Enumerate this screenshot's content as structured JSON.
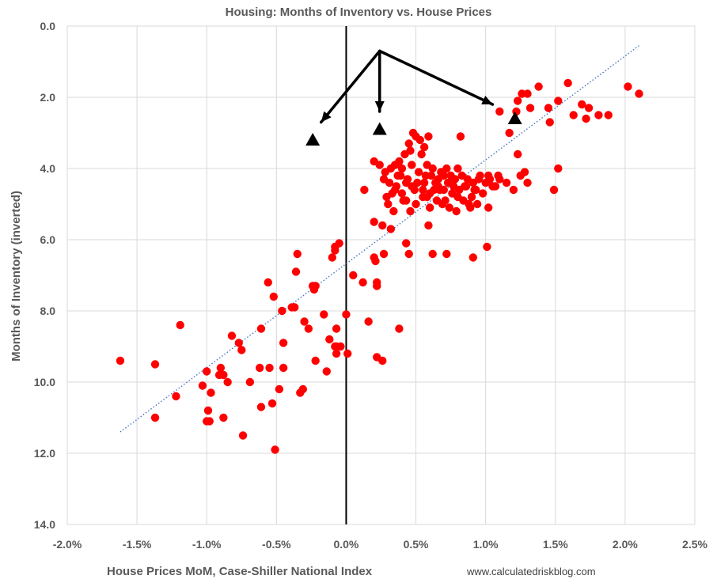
{
  "chart_data": {
    "type": "scatter",
    "title": "Housing: Months of Inventory vs. House Prices",
    "xlabel": "House Prices MoM, Case-Shiller National Index",
    "ylabel": "Months of Inventory (inverted)",
    "source_text": "www.calculatedriskblog.com",
    "xlim": [
      -2.0,
      2.5
    ],
    "ylim": [
      0.0,
      14.0
    ],
    "y_inverted": true,
    "x_tick_labels": [
      "-2.0%",
      "-1.5%",
      "-1.0%",
      "-0.5%",
      "0.0%",
      "0.5%",
      "1.0%",
      "1.5%",
      "2.0%",
      "2.5%"
    ],
    "x_tick_values": [
      -2.0,
      -1.5,
      -1.0,
      -0.5,
      0.0,
      0.5,
      1.0,
      1.5,
      2.0,
      2.5
    ],
    "y_tick_labels": [
      "0.0",
      "2.0",
      "4.0",
      "6.0",
      "8.0",
      "10.0",
      "12.0",
      "14.0"
    ],
    "y_tick_values": [
      0,
      2,
      4,
      6,
      8,
      10,
      12,
      14
    ],
    "grid": true,
    "zero_line": true,
    "point_color": "#ff0000",
    "trend_color": "#4472c4",
    "trendline": {
      "x": [
        -1.62,
        2.1
      ],
      "y": [
        11.4,
        0.55
      ],
      "style": "dotted"
    },
    "highlighted_points": [
      [
        -0.24,
        3.2
      ],
      [
        0.24,
        2.9
      ],
      [
        1.21,
        2.6
      ]
    ],
    "arrow_origin": [
      0.24,
      0.7
    ],
    "points": [
      [
        -1.62,
        9.4
      ],
      [
        -1.37,
        9.5
      ],
      [
        -1.37,
        11.0
      ],
      [
        -1.22,
        10.4
      ],
      [
        -1.19,
        8.4
      ],
      [
        -1.03,
        10.1
      ],
      [
        -1.0,
        11.1
      ],
      [
        -0.99,
        10.8
      ],
      [
        -0.98,
        11.1
      ],
      [
        -1.0,
        9.7
      ],
      [
        -0.97,
        10.3
      ],
      [
        -0.91,
        9.8
      ],
      [
        -0.9,
        9.6
      ],
      [
        -0.88,
        9.8
      ],
      [
        -0.88,
        11.0
      ],
      [
        -0.85,
        10.0
      ],
      [
        -0.82,
        8.7
      ],
      [
        -0.77,
        8.9
      ],
      [
        -0.75,
        9.1
      ],
      [
        -0.74,
        11.5
      ],
      [
        -0.69,
        10.0
      ],
      [
        -0.62,
        9.6
      ],
      [
        -0.61,
        8.5
      ],
      [
        -0.61,
        10.7
      ],
      [
        -0.56,
        7.2
      ],
      [
        -0.55,
        9.6
      ],
      [
        -0.53,
        10.6
      ],
      [
        -0.52,
        7.6
      ],
      [
        -0.51,
        11.9
      ],
      [
        -0.48,
        10.2
      ],
      [
        -0.46,
        8.0
      ],
      [
        -0.45,
        8.9
      ],
      [
        -0.45,
        9.6
      ],
      [
        -0.39,
        7.9
      ],
      [
        -0.37,
        7.9
      ],
      [
        -0.36,
        6.9
      ],
      [
        -0.35,
        6.4
      ],
      [
        -0.33,
        10.3
      ],
      [
        -0.31,
        10.2
      ],
      [
        -0.3,
        8.3
      ],
      [
        -0.27,
        8.5
      ],
      [
        -0.24,
        7.3
      ],
      [
        -0.23,
        7.4
      ],
      [
        -0.22,
        7.3
      ],
      [
        -0.22,
        9.4
      ],
      [
        -0.16,
        8.1
      ],
      [
        -0.14,
        9.7
      ],
      [
        -0.12,
        8.8
      ],
      [
        -0.1,
        6.5
      ],
      [
        -0.08,
        6.3
      ],
      [
        -0.08,
        6.2
      ],
      [
        -0.08,
        9.0
      ],
      [
        -0.07,
        9.0
      ],
      [
        -0.07,
        9.2
      ],
      [
        -0.07,
        8.5
      ],
      [
        -0.05,
        6.1
      ],
      [
        -0.04,
        9.0
      ],
      [
        0.0,
        8.1
      ],
      [
        0.01,
        9.2
      ],
      [
        0.05,
        7.0
      ],
      [
        0.12,
        7.2
      ],
      [
        0.13,
        4.6
      ],
      [
        0.16,
        8.3
      ],
      [
        0.2,
        6.5
      ],
      [
        0.21,
        6.6
      ],
      [
        0.22,
        7.2
      ],
      [
        0.22,
        7.3
      ],
      [
        0.22,
        9.3
      ],
      [
        0.26,
        9.4
      ],
      [
        0.27,
        6.4
      ],
      [
        0.32,
        5.7
      ],
      [
        0.34,
        5.2
      ],
      [
        0.38,
        8.5
      ],
      [
        0.43,
        6.1
      ],
      [
        0.45,
        6.4
      ],
      [
        0.62,
        6.4
      ],
      [
        0.72,
        6.4
      ],
      [
        0.91,
        6.5
      ],
      [
        1.01,
        6.2
      ],
      [
        0.59,
        5.6
      ],
      [
        0.2,
        5.5
      ],
      [
        0.26,
        5.6
      ],
      [
        0.3,
        5.0
      ],
      [
        0.35,
        4.6
      ],
      [
        0.4,
        4.0
      ],
      [
        0.43,
        4.4
      ],
      [
        0.46,
        5.2
      ],
      [
        0.5,
        5.0
      ],
      [
        0.55,
        4.8
      ],
      [
        0.6,
        5.1
      ],
      [
        0.65,
        4.9
      ],
      [
        0.7,
        4.6
      ],
      [
        0.75,
        4.2
      ],
      [
        0.8,
        4.0
      ],
      [
        0.85,
        4.5
      ],
      [
        0.9,
        4.8
      ],
      [
        0.95,
        4.3
      ],
      [
        1.02,
        4.2
      ],
      [
        1.05,
        4.5
      ],
      [
        1.1,
        4.3
      ],
      [
        1.15,
        4.4
      ],
      [
        1.2,
        4.6
      ],
      [
        1.28,
        4.1
      ],
      [
        1.3,
        4.4
      ],
      [
        1.25,
        4.2
      ],
      [
        0.2,
        3.8
      ],
      [
        0.24,
        3.9
      ],
      [
        0.28,
        4.1
      ],
      [
        0.31,
        4.4
      ],
      [
        0.33,
        4.7
      ],
      [
        0.36,
        4.5
      ],
      [
        0.39,
        4.2
      ],
      [
        0.41,
        4.9
      ],
      [
        0.44,
        4.3
      ],
      [
        0.47,
        3.9
      ],
      [
        0.49,
        4.6
      ],
      [
        0.52,
        4.1
      ],
      [
        0.54,
        3.6
      ],
      [
        0.56,
        4.4
      ],
      [
        0.58,
        4.8
      ],
      [
        0.61,
        4.2
      ],
      [
        0.63,
        4.6
      ],
      [
        0.66,
        4.3
      ],
      [
        0.68,
        4.1
      ],
      [
        0.71,
        4.9
      ],
      [
        0.73,
        4.4
      ],
      [
        0.76,
        4.7
      ],
      [
        0.78,
        4.3
      ],
      [
        0.81,
        4.6
      ],
      [
        0.83,
        4.2
      ],
      [
        0.86,
        4.5
      ],
      [
        0.88,
        5.0
      ],
      [
        0.91,
        4.4
      ],
      [
        0.93,
        4.6
      ],
      [
        0.96,
        4.2
      ],
      [
        0.98,
        4.7
      ],
      [
        1.0,
        4.4
      ],
      [
        1.03,
        4.3
      ],
      [
        1.07,
        4.5
      ],
      [
        1.09,
        4.2
      ],
      [
        0.48,
        3.0
      ],
      [
        0.5,
        3.1
      ],
      [
        0.53,
        3.2
      ],
      [
        0.56,
        3.4
      ],
      [
        0.59,
        3.1
      ],
      [
        0.82,
        3.1
      ],
      [
        0.45,
        3.3
      ],
      [
        0.38,
        3.8
      ],
      [
        0.42,
        3.6
      ],
      [
        0.46,
        3.5
      ],
      [
        0.58,
        3.9
      ],
      [
        0.62,
        4.0
      ],
      [
        0.66,
        4.5
      ],
      [
        0.69,
        5.0
      ],
      [
        0.74,
        5.1
      ],
      [
        0.79,
        5.2
      ],
      [
        0.84,
        4.9
      ],
      [
        0.89,
        5.1
      ],
      [
        0.94,
        5.0
      ],
      [
        1.02,
        5.1
      ],
      [
        0.27,
        4.3
      ],
      [
        0.29,
        4.8
      ],
      [
        0.32,
        4.0
      ],
      [
        0.35,
        3.9
      ],
      [
        0.37,
        4.2
      ],
      [
        0.4,
        4.7
      ],
      [
        0.43,
        4.9
      ],
      [
        0.47,
        4.5
      ],
      [
        0.51,
        4.4
      ],
      [
        0.55,
        4.6
      ],
      [
        0.57,
        4.2
      ],
      [
        0.6,
        4.7
      ],
      [
        0.64,
        4.4
      ],
      [
        0.67,
        4.6
      ],
      [
        0.7,
        4.2
      ],
      [
        0.72,
        4.0
      ],
      [
        0.77,
        4.5
      ],
      [
        0.8,
        4.8
      ],
      [
        0.87,
        4.3
      ],
      [
        0.92,
        4.6
      ],
      [
        1.1,
        2.4
      ],
      [
        1.17,
        3.0
      ],
      [
        1.22,
        2.4
      ],
      [
        1.23,
        2.1
      ],
      [
        1.23,
        3.6
      ],
      [
        1.26,
        1.9
      ],
      [
        1.3,
        1.9
      ],
      [
        1.32,
        2.3
      ],
      [
        1.38,
        1.7
      ],
      [
        1.45,
        2.3
      ],
      [
        1.46,
        2.7
      ],
      [
        1.49,
        4.6
      ],
      [
        1.52,
        2.1
      ],
      [
        1.52,
        4.0
      ],
      [
        1.59,
        1.6
      ],
      [
        1.63,
        2.5
      ],
      [
        1.69,
        2.2
      ],
      [
        1.72,
        2.6
      ],
      [
        1.74,
        2.3
      ],
      [
        1.81,
        2.5
      ],
      [
        1.88,
        2.5
      ],
      [
        2.02,
        1.7
      ],
      [
        2.1,
        1.9
      ]
    ]
  }
}
